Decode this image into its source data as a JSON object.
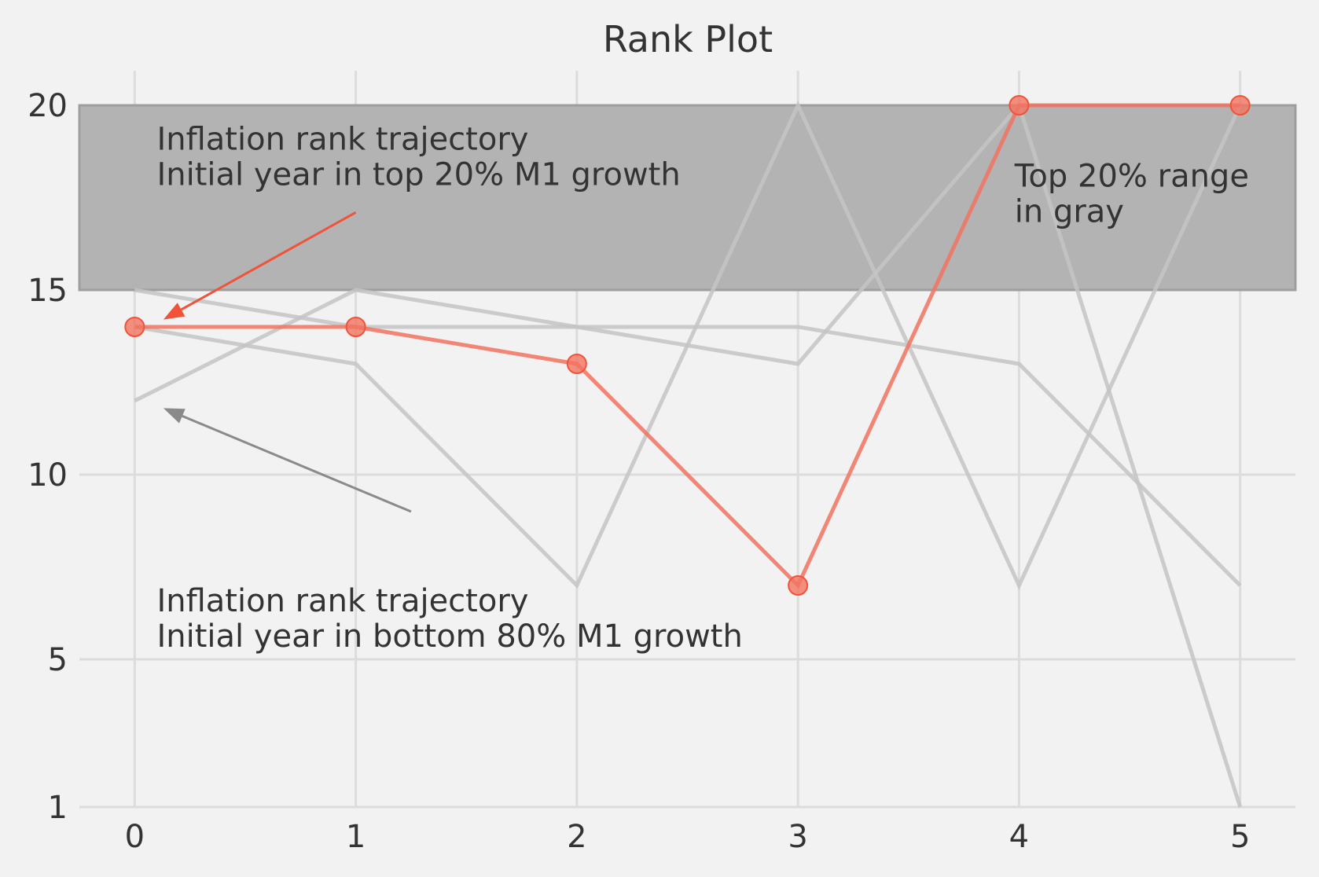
{
  "chart_data": {
    "type": "line",
    "title": "Rank Plot",
    "xlabel": "",
    "ylabel": "",
    "x": [
      0,
      1,
      2,
      3,
      4,
      5
    ],
    "xlim": [
      -0.25,
      5.25
    ],
    "ylim": [
      1,
      20.8
    ],
    "xticks": [
      0,
      1,
      2,
      3,
      4,
      5
    ],
    "yticks": [
      1,
      5,
      10,
      15,
      20
    ],
    "grid": true,
    "highlight_band": {
      "y0": 15,
      "y1": 20,
      "color": "#b3b3b3"
    },
    "series": [
      {
        "values": [
          14,
          13,
          7,
          20,
          7,
          20
        ],
        "color": "#c4c4c4",
        "role": "background"
      },
      {
        "values": [
          15,
          14,
          14,
          14,
          13,
          7
        ],
        "color": "#c4c4c4",
        "role": "background"
      },
      {
        "values": [
          12,
          15,
          14,
          13,
          20,
          1
        ],
        "color": "#c4c4c4",
        "role": "background"
      },
      {
        "values": [
          14,
          14,
          13,
          7,
          20,
          20
        ],
        "color": "#f27360",
        "role": "highlight",
        "markers": true
      }
    ],
    "annotations": [
      {
        "lines": [
          "Inflation rank trajectory",
          "Initial year in top 20% M1 growth"
        ],
        "text_at": [
          0.1,
          18.8
        ],
        "arrow_from": [
          1.0,
          17.1
        ],
        "arrow_to": [
          0.13,
          14.2
        ],
        "color": "#f0533a"
      },
      {
        "lines": [
          "Inflation rank trajectory",
          "Initial year in bottom 80% M1 growth"
        ],
        "text_at": [
          0.1,
          6.3
        ],
        "arrow_from": [
          1.25,
          9.0
        ],
        "arrow_to": [
          0.13,
          11.8
        ],
        "color": "#8a8a8a"
      },
      {
        "lines": [
          "Top 20% range",
          "in gray"
        ],
        "text_at": [
          3.98,
          17.8
        ],
        "arrow_from": null,
        "arrow_to": null,
        "color": null
      }
    ]
  }
}
